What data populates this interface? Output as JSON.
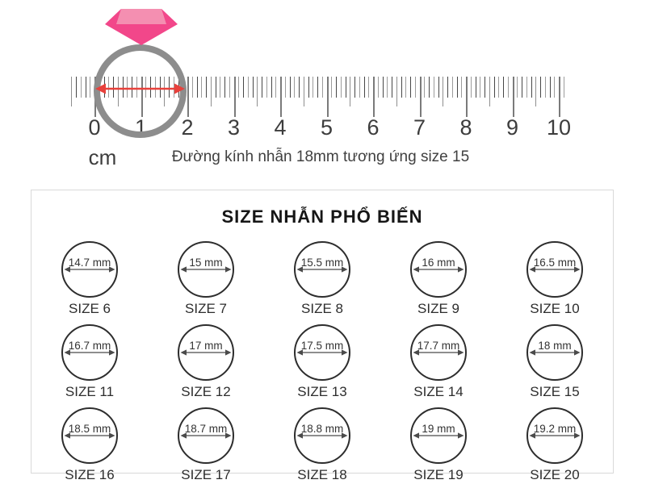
{
  "colors": {
    "diamond_light": "#F48FB1",
    "diamond_dark": "#F2478A",
    "ring_band": "#8D8D8D",
    "arrow_red": "#E8413C"
  },
  "ruler": {
    "numbers": [
      "0",
      "1",
      "2",
      "3",
      "4",
      "5",
      "6",
      "7",
      "8",
      "9",
      "10"
    ],
    "unit_label": "cm",
    "caption": "Đường kính nhẫn 18mm tương ứng size 15"
  },
  "size_chart": {
    "title": "SIZE NHẪN PHỔ BIẾN",
    "items": [
      {
        "diameter": "14.7 mm",
        "size": "SIZE 6"
      },
      {
        "diameter": "15 mm",
        "size": "SIZE 7"
      },
      {
        "diameter": "15.5 mm",
        "size": "SIZE 8"
      },
      {
        "diameter": "16 mm",
        "size": "SIZE 9"
      },
      {
        "diameter": "16.5 mm",
        "size": "SIZE 10"
      },
      {
        "diameter": "16.7 mm",
        "size": "SIZE 11"
      },
      {
        "diameter": "17 mm",
        "size": "SIZE 12"
      },
      {
        "diameter": "17.5 mm",
        "size": "SIZE 13"
      },
      {
        "diameter": "17.7 mm",
        "size": "SIZE 14"
      },
      {
        "diameter": "18 mm",
        "size": "SIZE 15"
      },
      {
        "diameter": "18.5 mm",
        "size": "SIZE 16"
      },
      {
        "diameter": "18.7 mm",
        "size": "SIZE 17"
      },
      {
        "diameter": "18.8 mm",
        "size": "SIZE 18"
      },
      {
        "diameter": "19 mm",
        "size": "SIZE 19"
      },
      {
        "diameter": "19.2 mm",
        "size": "SIZE 20"
      }
    ]
  }
}
